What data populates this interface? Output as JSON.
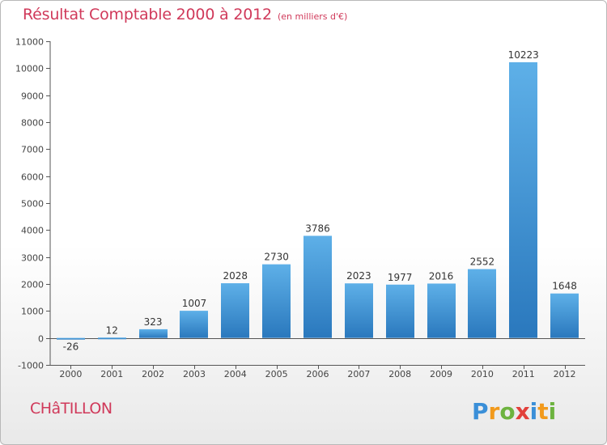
{
  "chart_data": {
    "type": "bar",
    "title": "Résultat Comptable 2000 à 2012",
    "subtitle": "(en milliers d'€)",
    "categories": [
      "2000",
      "2001",
      "2002",
      "2003",
      "2004",
      "2005",
      "2006",
      "2007",
      "2008",
      "2009",
      "2010",
      "2011",
      "2012"
    ],
    "values": [
      -26,
      12,
      323,
      1007,
      2028,
      2730,
      3786,
      2023,
      1977,
      2016,
      2552,
      10223,
      1648
    ],
    "ylim": [
      -1000,
      11000
    ],
    "yticks": [
      -1000,
      0,
      1000,
      2000,
      3000,
      4000,
      5000,
      6000,
      7000,
      8000,
      9000,
      10000,
      11000
    ],
    "grid": false,
    "bar_color": "#4ea0dc"
  },
  "footer": {
    "commune": "CHâTILLON",
    "brand": "Proxiti"
  },
  "colors": {
    "accent": "#d0395a",
    "axis": "#444444"
  }
}
